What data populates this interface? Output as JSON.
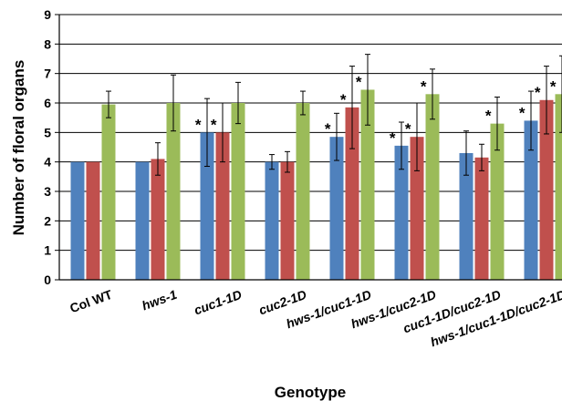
{
  "chart_data": {
    "type": "bar",
    "title": "",
    "xlabel": "Genotype",
    "ylabel": "Number of floral organs",
    "ylim": [
      0,
      9
    ],
    "yticks": [
      0,
      1,
      2,
      3,
      4,
      5,
      6,
      7,
      8,
      9
    ],
    "grid": true,
    "legend": "none",
    "categories": [
      "Col WT",
      "hws-1",
      "cuc1-1D",
      "cuc2-1D",
      "hws-1/cuc1-1D",
      "hws-1/cuc2-1D",
      "cuc1-1D/cuc2-1D",
      "hws-1/cuc1-1D/cuc2-1D"
    ],
    "category_styles": [
      "normal",
      "italic",
      "italic",
      "italic",
      "italic",
      "italic",
      "italic",
      "italic"
    ],
    "significance_marker": "*",
    "series": [
      {
        "color": "#4f81bd",
        "values": [
          4.0,
          4.0,
          5.0,
          4.0,
          4.85,
          4.55,
          4.3,
          5.4
        ],
        "errors": [
          0.0,
          0.0,
          1.15,
          0.25,
          0.8,
          0.8,
          0.75,
          1.0
        ],
        "significant": [
          false,
          false,
          true,
          false,
          true,
          true,
          false,
          true
        ]
      },
      {
        "color": "#c0504d",
        "values": [
          4.0,
          4.1,
          5.0,
          4.0,
          5.85,
          4.85,
          4.15,
          6.1
        ],
        "errors": [
          0.0,
          0.55,
          1.0,
          0.35,
          1.4,
          1.15,
          0.45,
          1.15
        ],
        "significant": [
          false,
          false,
          true,
          false,
          true,
          true,
          false,
          true
        ]
      },
      {
        "color": "#9bbb59",
        "values": [
          5.95,
          6.0,
          6.0,
          6.0,
          6.45,
          6.3,
          5.3,
          6.3
        ],
        "errors": [
          0.45,
          0.95,
          0.7,
          0.4,
          1.2,
          0.85,
          0.9,
          1.3
        ],
        "significant": [
          false,
          false,
          false,
          false,
          true,
          true,
          true,
          true
        ]
      }
    ]
  }
}
